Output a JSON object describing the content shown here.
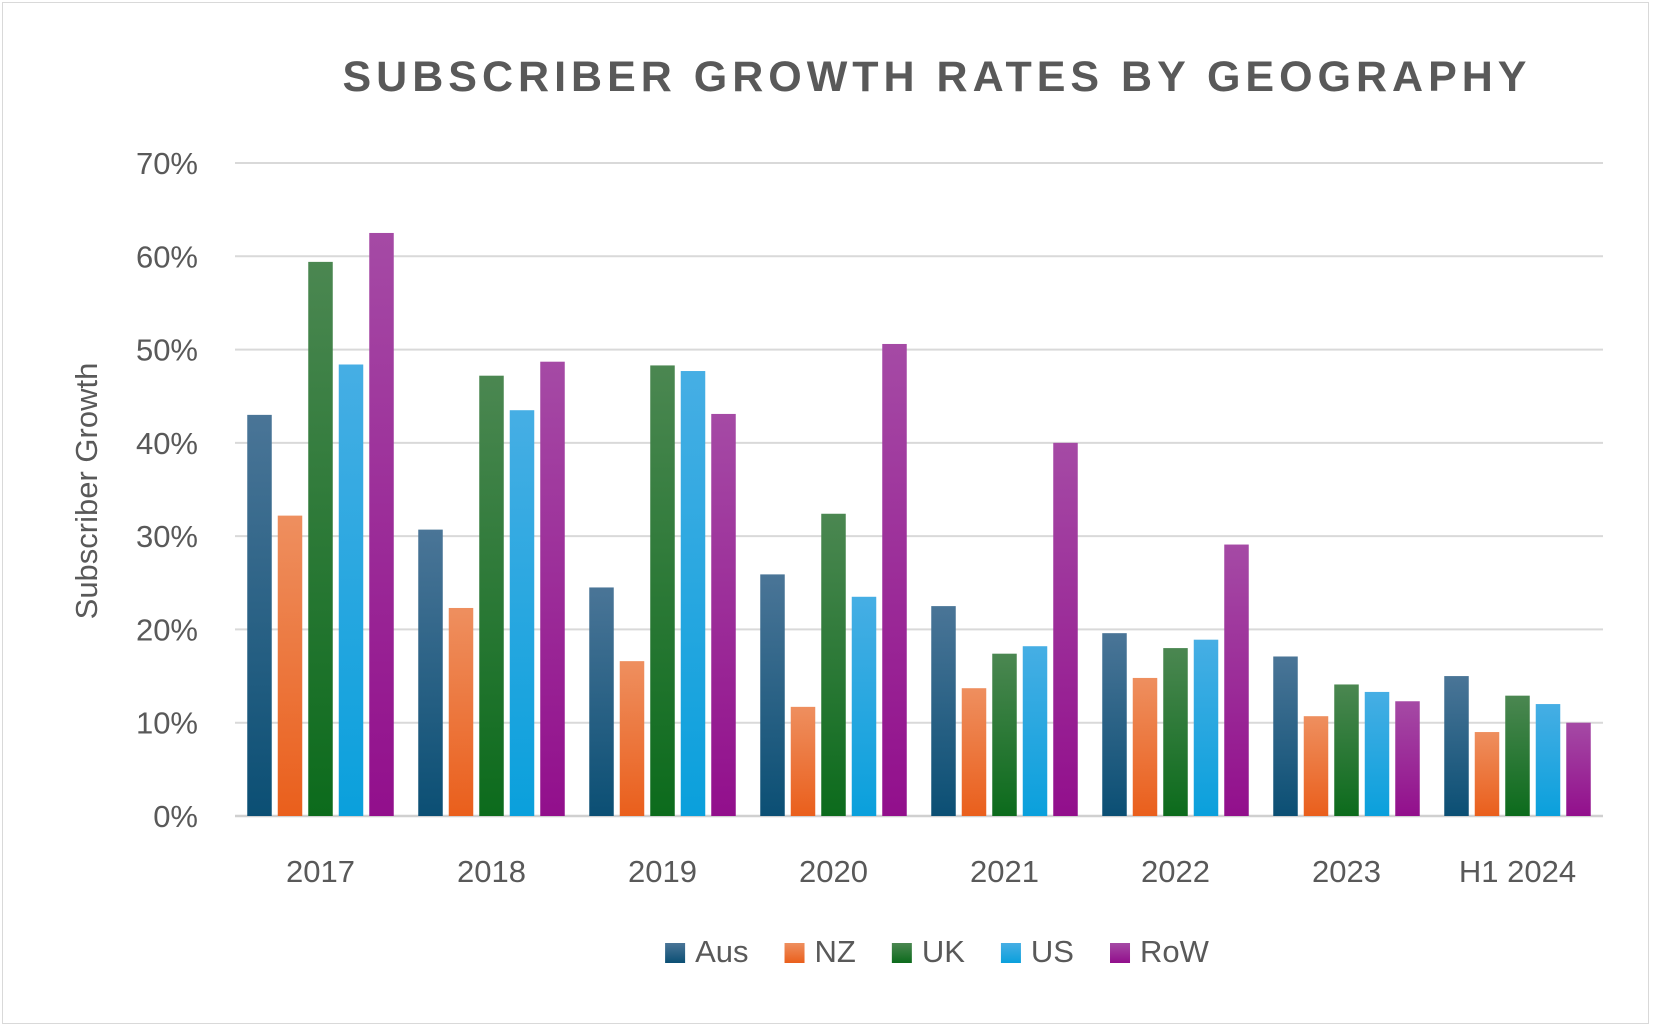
{
  "chart_data": {
    "type": "bar",
    "title": "SUBSCRIBER GROWTH RATES BY GEOGRAPHY",
    "xlabel": "",
    "ylabel": "Subscriber Growth",
    "ylim": [
      0,
      70
    ],
    "y_ticks": [
      "0%",
      "10%",
      "20%",
      "30%",
      "40%",
      "50%",
      "60%",
      "70%"
    ],
    "grid": true,
    "legend_position": "bottom",
    "categories": [
      "2017",
      "2018",
      "2019",
      "2020",
      "2021",
      "2022",
      "2023",
      "H1 2024"
    ],
    "series": [
      {
        "name": "Aus",
        "color_top": "#4a7597",
        "color_bottom": "#0b4f74",
        "values": [
          43,
          30.7,
          24.5,
          25.9,
          22.5,
          19.6,
          17.1,
          15
        ]
      },
      {
        "name": "NZ",
        "color_top": "#ee8f5f",
        "color_bottom": "#ea5f1c",
        "values": [
          32.2,
          22.3,
          16.6,
          11.7,
          13.7,
          14.8,
          10.7,
          9
        ]
      },
      {
        "name": "UK",
        "color_top": "#4b8751",
        "color_bottom": "#0c6b1c",
        "values": [
          59.4,
          47.2,
          48.3,
          32.4,
          17.4,
          18,
          14.1,
          12.9
        ]
      },
      {
        "name": "US",
        "color_top": "#46aee4",
        "color_bottom": "#0aa0dc",
        "values": [
          48.4,
          43.5,
          47.7,
          23.5,
          18.2,
          18.9,
          13.3,
          12
        ]
      },
      {
        "name": "RoW",
        "color_top": "#a54aa5",
        "color_bottom": "#920f8c",
        "values": [
          62.5,
          48.7,
          43.1,
          50.6,
          40,
          29.1,
          12.3,
          10
        ]
      }
    ]
  }
}
